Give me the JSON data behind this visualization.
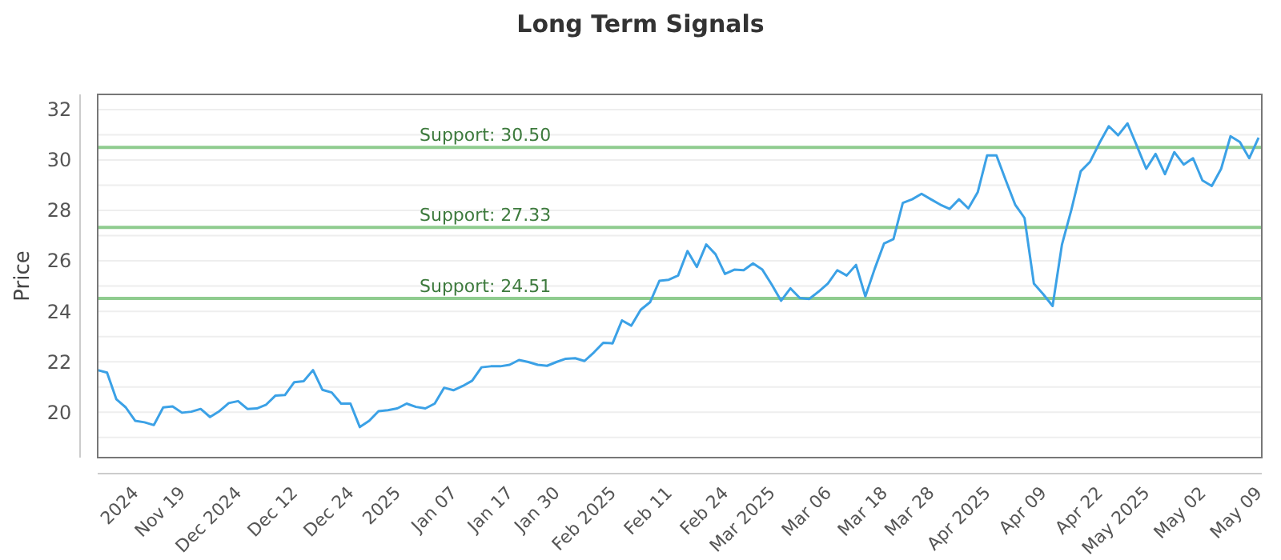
{
  "chart_data": {
    "type": "line",
    "title": "Long Term Signals",
    "ylabel": "Price",
    "categories": [
      null,
      null,
      null,
      null,
      "2024",
      null,
      null,
      null,
      null,
      "Nov 19",
      null,
      null,
      null,
      null,
      null,
      "Dec 2024",
      null,
      null,
      null,
      null,
      null,
      "Dec 12",
      null,
      null,
      null,
      null,
      null,
      "Dec 24",
      null,
      null,
      null,
      null,
      "2025",
      null,
      null,
      null,
      null,
      null,
      "Jan 07",
      null,
      null,
      null,
      null,
      null,
      "Jan 17",
      null,
      null,
      null,
      null,
      "Jan 30",
      null,
      null,
      null,
      null,
      null,
      "Feb 2025",
      null,
      null,
      null,
      null,
      null,
      "Feb 11",
      null,
      null,
      null,
      null,
      null,
      "Feb 24",
      null,
      null,
      null,
      null,
      "Mar 2025",
      null,
      null,
      null,
      null,
      null,
      "Mar 06",
      null,
      null,
      null,
      null,
      null,
      "Mar 18",
      null,
      null,
      null,
      null,
      "Mar 28",
      null,
      null,
      null,
      null,
      null,
      "Apr 2025",
      null,
      null,
      null,
      null,
      null,
      "Apr 09",
      null,
      null,
      null,
      null,
      null,
      "Apr 22",
      null,
      null,
      null,
      null,
      "May 2025",
      null,
      null,
      null,
      null,
      null,
      "May 02",
      null,
      null,
      null,
      null,
      null,
      "May 09"
    ],
    "series": [
      {
        "color": "#3ba1e6",
        "values": [
          21.67,
          21.57,
          20.51,
          20.19,
          19.66,
          19.6,
          19.49,
          20.19,
          20.23,
          19.98,
          20.02,
          20.13,
          19.81,
          20.04,
          20.36,
          20.44,
          20.13,
          20.15,
          20.3,
          20.66,
          20.68,
          21.19,
          21.23,
          21.67,
          20.89,
          20.78,
          20.34,
          20.34,
          19.41,
          19.66,
          20.04,
          20.08,
          20.15,
          20.34,
          20.21,
          20.15,
          20.34,
          20.97,
          20.87,
          21.04,
          21.25,
          21.78,
          21.82,
          21.82,
          21.88,
          22.07,
          21.99,
          21.88,
          21.84,
          21.99,
          22.12,
          22.14,
          22.03,
          22.37,
          22.75,
          22.73,
          23.64,
          23.43,
          24.06,
          24.36,
          25.21,
          25.25,
          25.42,
          26.39,
          25.76,
          26.65,
          26.26,
          25.48,
          25.65,
          25.63,
          25.9,
          25.65,
          25.06,
          24.42,
          24.91,
          24.53,
          24.49,
          24.78,
          25.1,
          25.63,
          25.42,
          25.84,
          24.59,
          25.69,
          26.69,
          26.86,
          28.3,
          28.44,
          28.66,
          28.44,
          28.23,
          28.06,
          28.44,
          28.08,
          28.72,
          30.18,
          30.18,
          29.19,
          28.23,
          27.7,
          25.1,
          24.68,
          24.21,
          26.65,
          28.02,
          29.55,
          29.93,
          30.67,
          31.34,
          30.98,
          31.45,
          30.56,
          29.65,
          30.24,
          29.44,
          30.31,
          29.82,
          30.07,
          29.19,
          28.97,
          29.65,
          30.94,
          30.71,
          30.07,
          30.88
        ]
      }
    ],
    "ylim": [
      18.2,
      32.6
    ],
    "yticks": [
      {
        "value": 19,
        "label": null
      },
      20,
      {
        "value": 21,
        "label": null
      },
      22,
      {
        "value": 23,
        "label": null
      },
      24,
      {
        "value": 25,
        "label": null
      },
      26,
      {
        "value": 27,
        "label": null
      },
      28,
      {
        "value": 29,
        "label": null
      },
      30,
      {
        "value": 31,
        "label": null
      },
      32
    ],
    "grid": "y",
    "marker": "none",
    "line_style": "solid",
    "ref_lines": [
      {
        "axis": "y",
        "value": 30.5,
        "label": "Support: 30.50",
        "color": "#8fcc8f"
      },
      {
        "axis": "y",
        "value": 27.33,
        "label": "Support: 27.33",
        "color": "#8fcc8f"
      },
      {
        "axis": "y",
        "value": 24.51,
        "label": "Support: 24.51",
        "color": "#8fcc8f"
      }
    ]
  }
}
